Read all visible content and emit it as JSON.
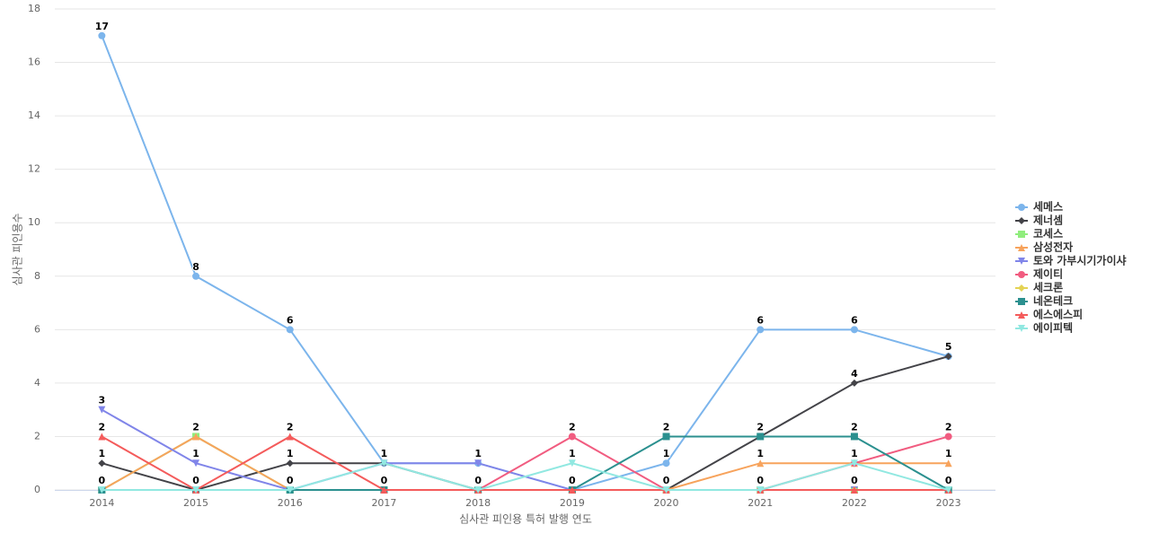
{
  "chart_data": {
    "type": "line",
    "x_label": "심사관 피인용 특허 발행 연도",
    "y_label": "심사관 피인용수",
    "categories": [
      "2014",
      "2015",
      "2016",
      "2017",
      "2018",
      "2019",
      "2020",
      "2021",
      "2022",
      "2023"
    ],
    "ylim": [
      0,
      18
    ],
    "yticks": [
      0,
      2,
      4,
      6,
      8,
      10,
      12,
      14,
      16,
      18
    ],
    "grid": true,
    "series": [
      {
        "name": "세메스",
        "color": "#7cb5ec",
        "values": [
          17,
          8,
          6,
          1,
          1,
          0,
          1,
          6,
          6,
          5
        ]
      },
      {
        "name": "제너셈",
        "color": "#434348",
        "values": [
          1,
          0,
          1,
          1,
          0,
          0,
          0,
          2,
          4,
          5
        ]
      },
      {
        "name": "코세스",
        "color": "#90ed7d",
        "values": [
          0,
          2,
          0,
          0,
          0,
          0,
          0,
          0,
          0,
          0
        ]
      },
      {
        "name": "삼성전자",
        "color": "#f7a35c",
        "values": [
          0,
          2,
          0,
          0,
          0,
          0,
          0,
          1,
          1,
          1
        ]
      },
      {
        "name": "토와 가부시기가이샤",
        "color": "#8085e9",
        "values": [
          3,
          1,
          0,
          1,
          1,
          0,
          0,
          0,
          0,
          0
        ]
      },
      {
        "name": "제이티",
        "color": "#f15c80",
        "values": [
          0,
          0,
          0,
          0,
          0,
          2,
          0,
          0,
          1,
          2
        ]
      },
      {
        "name": "세크론",
        "color": "#e4d354",
        "values": [
          0,
          0,
          0,
          0,
          0,
          0,
          0,
          0,
          0,
          0
        ]
      },
      {
        "name": "네온테크",
        "color": "#2b908f",
        "values": [
          0,
          0,
          0,
          0,
          0,
          0,
          2,
          2,
          2,
          0
        ]
      },
      {
        "name": "에스에스피",
        "color": "#f45b5b",
        "values": [
          2,
          0,
          2,
          0,
          0,
          0,
          0,
          0,
          0,
          0
        ]
      },
      {
        "name": "에이피텍",
        "color": "#91e8e1",
        "values": [
          0,
          0,
          0,
          1,
          0,
          1,
          0,
          0,
          1,
          0
        ]
      }
    ]
  }
}
